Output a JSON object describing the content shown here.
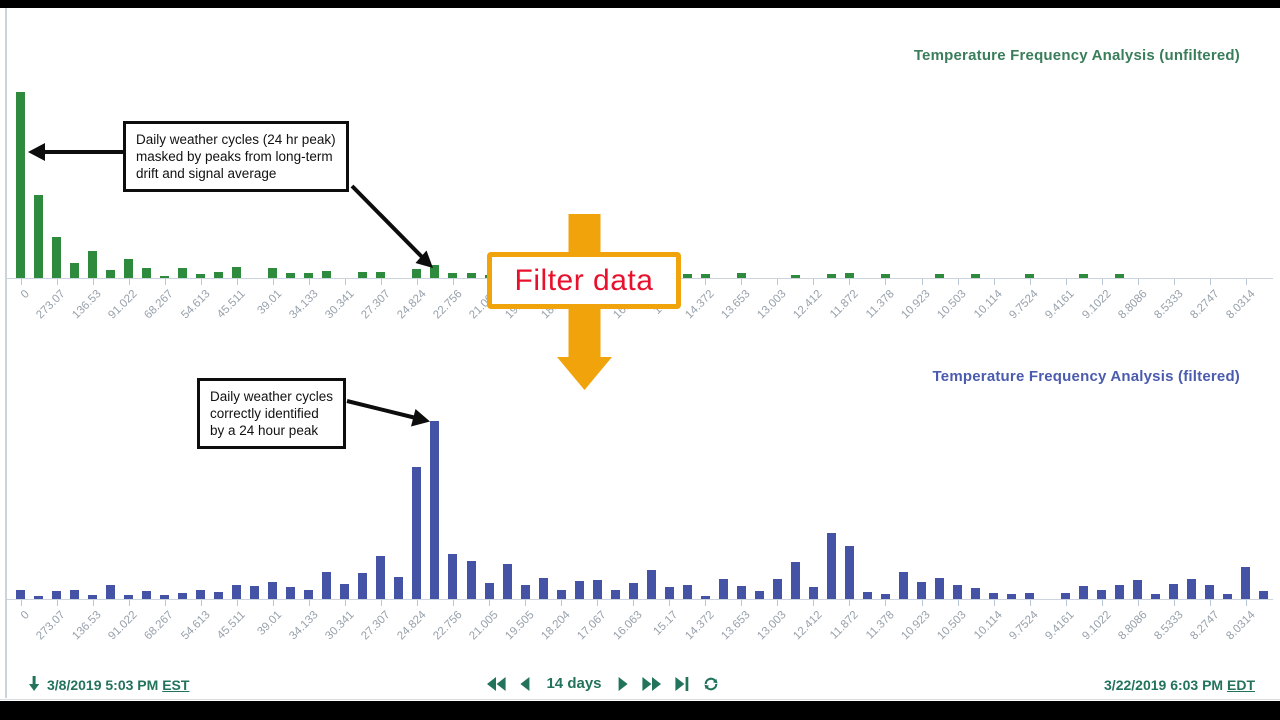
{
  "chart_data": [
    {
      "type": "bar",
      "title": "Temperature Frequency Analysis (unfiltered)",
      "title_color": "#3a7d5a",
      "bar_color": "#2e8b3d",
      "xlabel": "period",
      "ylabel": "",
      "grid": false,
      "legend_position": "none",
      "x_tick_labels": [
        "0",
        "273.07",
        "136.53",
        "91.022",
        "68.267",
        "54.613",
        "45.511",
        "39.01",
        "34.133",
        "30.341",
        "27.307",
        "24.824",
        "22.756",
        "21.005",
        "19.505",
        "18.204",
        "17.067",
        "16.063",
        "15.17",
        "14.372",
        "13.653",
        "13.003",
        "12.412",
        "11.872",
        "11.378",
        "10.923",
        "10.503",
        "10.114",
        "9.7524",
        "9.4161",
        "9.1022",
        "8.8086",
        "8.5333",
        "8.2747",
        "8.0314"
      ],
      "values_note": "70 bars, one tick every 2 bars; amplitudes are relative (pixel heights, no y-axis shown)",
      "values": [
        186,
        83,
        41,
        15,
        27,
        8,
        19,
        10,
        2,
        10,
        4,
        6,
        11,
        0,
        10,
        5,
        5,
        7,
        0,
        6,
        6,
        0,
        9,
        13,
        5,
        5,
        3,
        2,
        3,
        2,
        3,
        2,
        3,
        2,
        3,
        2,
        3,
        4,
        4,
        0,
        5,
        0,
        0,
        3,
        0,
        4,
        5,
        0,
        4,
        0,
        0,
        4,
        0,
        4,
        0,
        0,
        4,
        0,
        0,
        4,
        0,
        4,
        0,
        0,
        0,
        0,
        0,
        0,
        0,
        0
      ]
    },
    {
      "type": "bar",
      "title": "Temperature Frequency Analysis (filtered)",
      "title_color": "#4b5bae",
      "bar_color": "#4453a6",
      "xlabel": "period",
      "ylabel": "",
      "grid": false,
      "legend_position": "none",
      "x_tick_labels": [
        "0",
        "273.07",
        "136.53",
        "91.022",
        "68.267",
        "54.613",
        "45.511",
        "39.01",
        "34.133",
        "30.341",
        "27.307",
        "24.824",
        "22.756",
        "21.005",
        "19.505",
        "18.204",
        "17.067",
        "16.063",
        "15.17",
        "14.372",
        "13.653",
        "13.003",
        "12.412",
        "11.872",
        "11.378",
        "10.923",
        "10.503",
        "10.114",
        "9.7524",
        "9.4161",
        "9.1022",
        "8.8086",
        "8.5333",
        "8.2747",
        "8.0314"
      ],
      "values_note": "70 bars; tallest bar sits near the 24-hour period (between 24.824 and 22.756 ticks)",
      "values": [
        9,
        3,
        8,
        9,
        4,
        14,
        4,
        8,
        4,
        6,
        9,
        7,
        14,
        13,
        17,
        12,
        9,
        27,
        15,
        26,
        43,
        22,
        132,
        178,
        45,
        38,
        16,
        35,
        14,
        21,
        9,
        18,
        19,
        9,
        16,
        29,
        12,
        14,
        3,
        20,
        13,
        8,
        20,
        37,
        12,
        66,
        53,
        7,
        5,
        27,
        17,
        21,
        14,
        11,
        6,
        5,
        6,
        0,
        6,
        13,
        9,
        14,
        19,
        5,
        15,
        20,
        14,
        5,
        32,
        8
      ]
    }
  ],
  "annotations": {
    "box1": {
      "lines": [
        "Daily weather cycles (24 hr peak)",
        "masked by peaks from long-term",
        "drift and signal average"
      ]
    },
    "box2": {
      "lines": [
        "Daily weather cycles",
        "correctly identified",
        "by a 24 hour  peak"
      ]
    },
    "filter": {
      "label": "Filter data",
      "text_color": "#e8112d",
      "arrow_color": "#f0a30a"
    }
  },
  "footer": {
    "start_date": "3/8/2019 5:03 PM",
    "start_tz": "EST",
    "end_date": "3/22/2019 6:03 PM",
    "end_tz": "EDT",
    "range_label": "14 days",
    "icon_color": "#23735c",
    "icons": [
      "down-arrow-icon",
      "fast-rewind-icon",
      "step-back-icon",
      "step-forward-icon",
      "fast-forward-icon",
      "skip-to-end-icon",
      "refresh-icon"
    ]
  }
}
